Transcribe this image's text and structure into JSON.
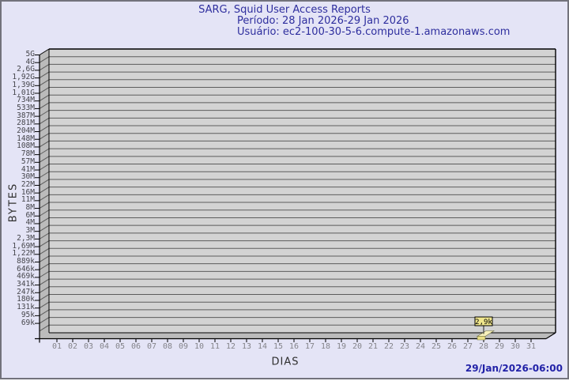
{
  "header": {
    "title": "SARG, Squid User Access Reports",
    "period": "Período: 28 Jan 2026-29 Jan 2026",
    "user": "Usuário: ec2-100-30-5-6.compute-1.amazonaws.com"
  },
  "footer": {
    "generated_at": "29/Jan/2026-06:00"
  },
  "chart_data": {
    "type": "bar",
    "style": "3d-bar",
    "title": "SARG, Squid User Access Reports",
    "xlabel": "DIAS",
    "ylabel": "BYTES",
    "y_scale": "logarithmic",
    "grid": true,
    "y_tick_labels": [
      "5G",
      "4G",
      "2,6G",
      "1,92G",
      "1,39G",
      "1,01G",
      "734M",
      "533M",
      "387M",
      "281M",
      "204M",
      "148M",
      "108M",
      "78M",
      "57M",
      "41M",
      "30M",
      "22M",
      "16M",
      "11M",
      "8M",
      "6M",
      "4M",
      "3M",
      "2,3M",
      "1,69M",
      "1,22M",
      "889k",
      "646k",
      "469k",
      "341k",
      "247k",
      "180k",
      "131k",
      "95k",
      "69k"
    ],
    "x_categories": [
      "01",
      "02",
      "03",
      "04",
      "05",
      "06",
      "07",
      "08",
      "09",
      "10",
      "11",
      "12",
      "13",
      "14",
      "15",
      "16",
      "17",
      "18",
      "19",
      "20",
      "21",
      "22",
      "23",
      "24",
      "25",
      "26",
      "27",
      "28",
      "29",
      "30",
      "31"
    ],
    "bars": [
      {
        "day": "28",
        "label": "2,9k",
        "value_bytes": 2900
      }
    ],
    "colors": {
      "page_bg": "#e4e4f6",
      "page_border": "#72727c",
      "plot_bg": "#d3d3d3",
      "wall": "#bbbbbb",
      "gridline": "#5c5c5c",
      "axis": "#000000",
      "title_text": "#2e2e9e",
      "y_tick_text": "#46464c",
      "x_tick_text": "#84848a",
      "axis_label_text": "#2f2f2f",
      "timestamp_text": "#2222a8",
      "bar_top": "#f7f0bb",
      "bar_front": "#eadf87",
      "bar_outline": "#6b6b3a",
      "value_box_bg": "#f0e68c",
      "value_box_border": "#000000",
      "value_box_text": "#000000"
    }
  }
}
